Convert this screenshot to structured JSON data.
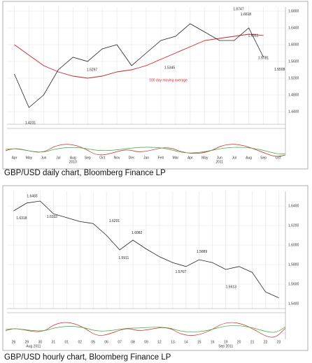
{
  "chart_data": [
    {
      "type": "line",
      "caption": "GBP/USD daily chart, Bloomberg Finance LP",
      "categories": [
        "Apr",
        "May",
        "Jun",
        "Jul",
        "Aug",
        "Sep",
        "Oct",
        "Nov",
        "Dec",
        "Jan",
        "Feb",
        "Mar",
        "Apr",
        "May",
        "Jun",
        "Jul",
        "Aug",
        "Sep",
        "Oct"
      ],
      "year_labels": [
        "2010",
        "2011"
      ],
      "values": [
        1.53,
        1.45,
        1.48,
        1.54,
        1.57,
        1.56,
        1.59,
        1.6,
        1.55,
        1.58,
        1.61,
        1.62,
        1.65,
        1.63,
        1.61,
        1.61,
        1.64,
        1.57,
        null
      ],
      "color": "#222222",
      "moving_average": {
        "label": "100 day moving average",
        "color": "#cc2222",
        "values": [
          1.6,
          1.575,
          1.55,
          1.535,
          1.525,
          1.52,
          1.525,
          1.535,
          1.54,
          1.55,
          1.565,
          1.58,
          1.595,
          1.61,
          1.615,
          1.62,
          1.625,
          1.622,
          null
        ]
      },
      "annotations": [
        1.4231,
        1.5297,
        1.5345,
        1.6747,
        1.5781,
        1.6311,
        1.6618,
        1.5508
      ],
      "ylim": [
        1.41,
        1.69
      ],
      "yticks": [
        {
          "value": 1.44,
          "label": "1.4400"
        },
        {
          "value": 1.48,
          "label": "1.4800"
        },
        {
          "value": 1.52,
          "label": "1.5200"
        },
        {
          "value": 1.56,
          "label": "1.5600"
        },
        {
          "value": 1.6,
          "label": "1.6000"
        },
        {
          "value": 1.64,
          "label": "1.6400"
        },
        {
          "value": 1.68,
          "label": "1.6800"
        }
      ],
      "grid": true
    },
    {
      "type": "line",
      "caption": "GBP/USD hourly chart, Bloomberg Finance LP",
      "categories": [
        "26",
        "29",
        "30",
        "31",
        "01",
        "02",
        "05",
        "06",
        "07",
        "08",
        "09",
        "12",
        "13",
        "14",
        "15",
        "16",
        "19",
        "20",
        "21",
        "22",
        "23"
      ],
      "year_labels": [
        "Aug 2011",
        "Sep 2011"
      ],
      "values": [
        1.635,
        1.643,
        1.645,
        1.632,
        1.628,
        1.624,
        1.622,
        1.61,
        1.595,
        1.605,
        1.596,
        1.588,
        1.582,
        1.578,
        1.585,
        1.582,
        1.575,
        1.578,
        1.572,
        1.552,
        1.546
      ],
      "color": "#222222",
      "annotations": [
        1.6318,
        1.6455,
        1.6332,
        1.6201,
        1.6082,
        1.5911,
        1.5889,
        1.5767,
        1.5613
      ],
      "ylim": [
        1.535,
        1.655
      ],
      "yticks": [
        {
          "value": 1.54,
          "label": "1.5400"
        },
        {
          "value": 1.56,
          "label": "1.5600"
        },
        {
          "value": 1.58,
          "label": "1.5800"
        },
        {
          "value": 1.6,
          "label": "1.6000"
        },
        {
          "value": 1.62,
          "label": "1.6200"
        },
        {
          "value": 1.64,
          "label": "1.6400"
        }
      ],
      "grid": true
    }
  ]
}
